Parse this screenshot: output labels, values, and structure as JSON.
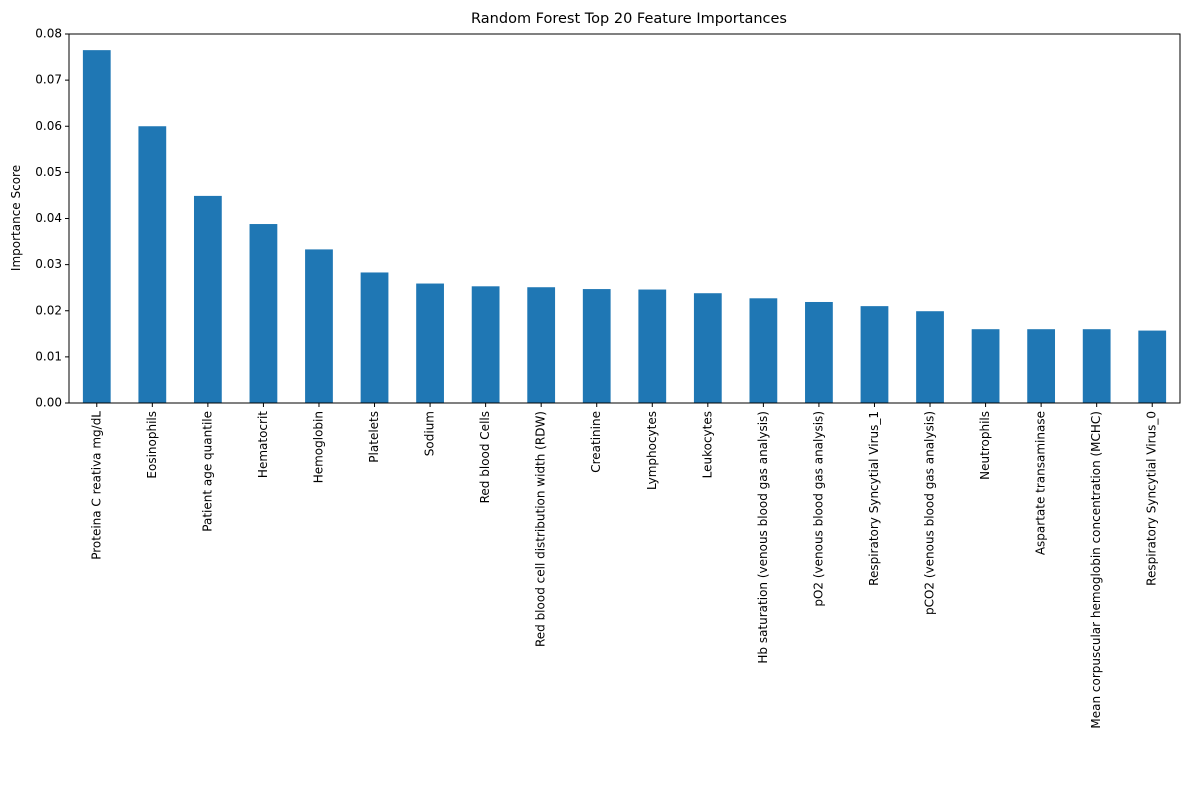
{
  "chart_data": {
    "type": "bar",
    "title": "Random Forest Top 20 Feature Importances",
    "xlabel": "",
    "ylabel": "Importance Score",
    "ylim": [
      0,
      0.08
    ],
    "yticks": [
      "0.00",
      "0.01",
      "0.02",
      "0.03",
      "0.04",
      "0.05",
      "0.06",
      "0.07",
      "0.08"
    ],
    "grid": false,
    "bar_color": "#1f77b4",
    "categories": [
      "Proteina C reativa mg/dL",
      "Eosinophils",
      "Patient age quantile",
      "Hematocrit",
      "Hemoglobin",
      "Platelets",
      "Sodium",
      "Red blood Cells",
      "Red blood cell distribution width (RDW)",
      "Creatinine",
      "Lymphocytes",
      "Leukocytes",
      "Hb saturation (venous blood gas analysis)",
      "pO2 (venous blood gas analysis)",
      "Respiratory Syncytial Virus_1",
      "pCO2 (venous blood gas analysis)",
      "Neutrophils",
      "Aspartate transaminase",
      "Mean corpuscular hemoglobin concentration (MCHC)",
      "Respiratory Syncytial Virus_0"
    ],
    "values": [
      0.0765,
      0.06,
      0.0449,
      0.0388,
      0.0333,
      0.0283,
      0.0259,
      0.0253,
      0.0251,
      0.0247,
      0.0246,
      0.0238,
      0.0227,
      0.0219,
      0.021,
      0.0199,
      0.016,
      0.016,
      0.016,
      0.0157
    ]
  }
}
